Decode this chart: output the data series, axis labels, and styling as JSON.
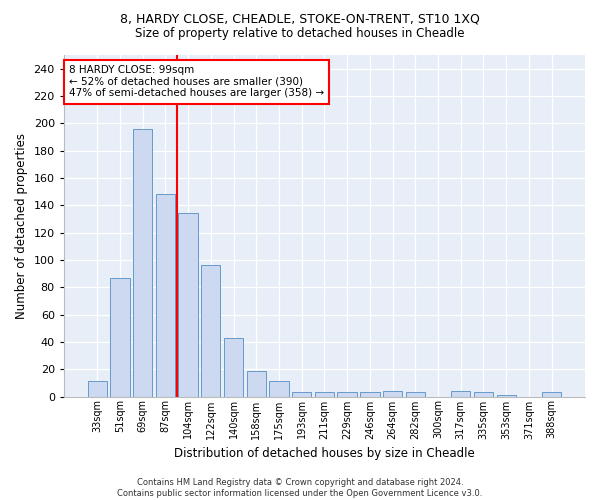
{
  "title1": "8, HARDY CLOSE, CHEADLE, STOKE-ON-TRENT, ST10 1XQ",
  "title2": "Size of property relative to detached houses in Cheadle",
  "xlabel": "Distribution of detached houses by size in Cheadle",
  "ylabel": "Number of detached properties",
  "categories": [
    "33sqm",
    "51sqm",
    "69sqm",
    "87sqm",
    "104sqm",
    "122sqm",
    "140sqm",
    "158sqm",
    "175sqm",
    "193sqm",
    "211sqm",
    "229sqm",
    "246sqm",
    "264sqm",
    "282sqm",
    "300sqm",
    "317sqm",
    "335sqm",
    "353sqm",
    "371sqm",
    "388sqm"
  ],
  "values": [
    11,
    87,
    196,
    148,
    134,
    96,
    43,
    19,
    11,
    3,
    3,
    3,
    3,
    4,
    3,
    0,
    4,
    3,
    1,
    0,
    3
  ],
  "bar_color": "#ccd9f0",
  "bar_edge_color": "#6699cc",
  "vline_x_index": 3.5,
  "vline_color": "red",
  "annotation_line1": "8 HARDY CLOSE: 99sqm",
  "annotation_line2": "← 52% of detached houses are smaller (390)",
  "annotation_line3": "47% of semi-detached houses are larger (358) →",
  "annotation_box_color": "white",
  "annotation_box_edge": "red",
  "ylim": [
    0,
    250
  ],
  "yticks": [
    0,
    20,
    40,
    60,
    80,
    100,
    120,
    140,
    160,
    180,
    200,
    220,
    240
  ],
  "footer": "Contains HM Land Registry data © Crown copyright and database right 2024.\nContains public sector information licensed under the Open Government Licence v3.0.",
  "bg_color": "#ffffff",
  "plot_bg_color": "#e8eef8"
}
